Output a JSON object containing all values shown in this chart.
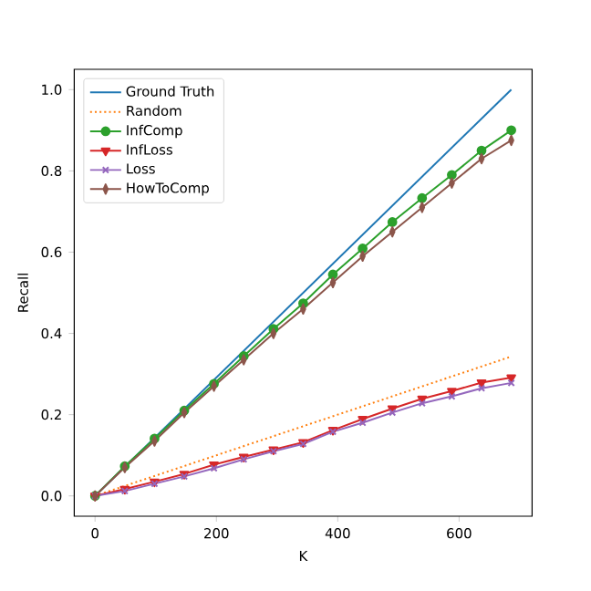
{
  "chart_data": {
    "type": "line",
    "xlabel": "K",
    "ylabel": "Recall",
    "xlim": [
      -34.3,
      720.3
    ],
    "ylim": [
      -0.05,
      1.05
    ],
    "xticks": [
      0,
      200,
      400,
      600
    ],
    "yticks": [
      {
        "value": 0,
        "label": "0.0"
      },
      0.2,
      0.4,
      0.6,
      0.8,
      {
        "value": 1,
        "label": "1.0"
      }
    ],
    "grid": false,
    "legend": "top left",
    "series": [
      {
        "name": "Ground Truth",
        "color": "#1f77b4",
        "marker": "none",
        "line_style": "solid",
        "x": [
          0,
          686
        ],
        "values": [
          0,
          1.0
        ]
      },
      {
        "name": "Random",
        "color": "#ff7f0e",
        "marker": "none",
        "line_style": "dotted",
        "x": [
          0,
          686
        ],
        "values": [
          0,
          0.343
        ]
      },
      {
        "name": "InfComp",
        "color": "#2ca02c",
        "marker": "circle",
        "line_style": "solid",
        "x": [
          0,
          49,
          98,
          147,
          196,
          245,
          294,
          343,
          392,
          441,
          490,
          539,
          588,
          637,
          686
        ],
        "values": [
          0,
          0.073,
          0.141,
          0.21,
          0.276,
          0.344,
          0.411,
          0.474,
          0.545,
          0.609,
          0.674,
          0.733,
          0.79,
          0.85,
          0.9
        ]
      },
      {
        "name": "InfLoss",
        "color": "#d62728",
        "marker": "triangle",
        "line_style": "solid",
        "x": [
          0,
          49,
          98,
          147,
          196,
          245,
          294,
          343,
          392,
          441,
          490,
          539,
          588,
          637,
          686
        ],
        "values": [
          0,
          0.017,
          0.035,
          0.054,
          0.077,
          0.096,
          0.114,
          0.132,
          0.162,
          0.189,
          0.215,
          0.239,
          0.258,
          0.279,
          0.291
        ]
      },
      {
        "name": "Loss",
        "color": "#9467bd",
        "marker": "cross",
        "line_style": "solid",
        "x": [
          0,
          49,
          98,
          147,
          196,
          245,
          294,
          343,
          392,
          441,
          490,
          539,
          588,
          637,
          686
        ],
        "values": [
          0,
          0.012,
          0.03,
          0.048,
          0.068,
          0.09,
          0.11,
          0.128,
          0.158,
          0.18,
          0.205,
          0.228,
          0.245,
          0.265,
          0.278
        ]
      },
      {
        "name": "HowToComp",
        "color": "#8c564b",
        "marker": "diamond",
        "line_style": "solid",
        "x": [
          0,
          49,
          98,
          147,
          196,
          245,
          294,
          343,
          392,
          441,
          490,
          539,
          588,
          637,
          686
        ],
        "values": [
          0,
          0.07,
          0.135,
          0.205,
          0.27,
          0.335,
          0.4,
          0.46,
          0.525,
          0.59,
          0.65,
          0.71,
          0.77,
          0.83,
          0.875
        ]
      }
    ]
  }
}
